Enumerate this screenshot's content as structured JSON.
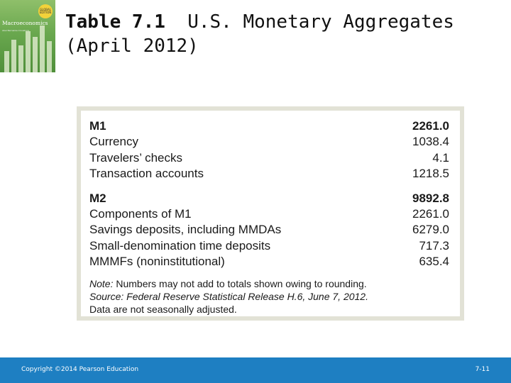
{
  "book_cover": {
    "title": "Macroeconomics",
    "badge": "GLOBAL EDITION",
    "author": "Abel Bernanke Croushore"
  },
  "slide": {
    "title_label": "Table 7.1",
    "title_text": "U.S. Monetary Aggregates (April 2012)"
  },
  "table": {
    "m1": {
      "label": "M1",
      "value": "2261.0",
      "rows": [
        {
          "label": "Currency",
          "value": "1038.4"
        },
        {
          "label": "Travelers’ checks",
          "value": "4.1"
        },
        {
          "label": "Transaction accounts",
          "value": "1218.5"
        }
      ]
    },
    "m2": {
      "label": "M2",
      "value": "9892.8",
      "rows": [
        {
          "label": "Components of M1",
          "value": "2261.0"
        },
        {
          "label": "Savings deposits, including MMDAs",
          "value": "6279.0"
        },
        {
          "label": "Small-denomination time deposits",
          "value": "717.3"
        },
        {
          "label": "MMMFs (noninstitutional)",
          "value": "635.4"
        }
      ]
    },
    "notes": {
      "note_label": "Note:",
      "note_text": " Numbers may not add to totals shown owing to rounding.",
      "source_label": "Source:",
      "source_text": " Federal Reserve Statistical Release H.6, June 7, 2012.",
      "adjust_text": "Data are not seasonally adjusted."
    }
  },
  "footer": {
    "copyright": "Copyright ©2014 Pearson Education",
    "page_number": "7-11"
  },
  "colors": {
    "footer_bar": "#1e7fc2",
    "table_border": "#e2e2d6",
    "cover_green": "#6aa84f"
  }
}
